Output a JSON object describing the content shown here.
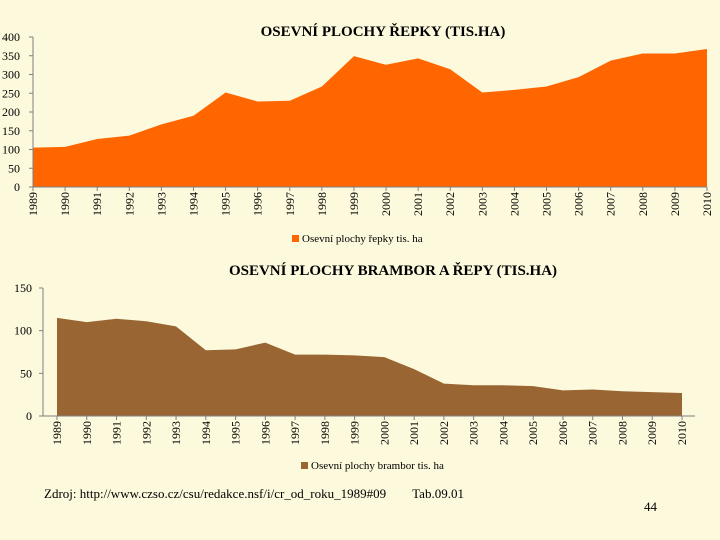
{
  "chart_data": [
    {
      "type": "area",
      "title": "OSEVNÍ PLOCHY ŘEPKY (TIS.HA)",
      "categories": [
        "1989",
        "1990",
        "1991",
        "1992",
        "1993",
        "1994",
        "1995",
        "1996",
        "1997",
        "1998",
        "1999",
        "2000",
        "2001",
        "2002",
        "2003",
        "2004",
        "2005",
        "2006",
        "2007",
        "2008",
        "2009",
        "2010"
      ],
      "series": [
        {
          "name": "Osevní plochy řepky  tis. ha",
          "values": [
            105,
            107,
            128,
            137,
            167,
            190,
            252,
            228,
            230,
            268,
            349,
            326,
            343,
            314,
            252,
            259,
            268,
            293,
            337,
            356,
            356,
            368
          ]
        }
      ],
      "ylim": [
        0,
        400
      ],
      "yticks": [
        0,
        50,
        100,
        150,
        200,
        250,
        300,
        350,
        400
      ],
      "color": "#ff6600",
      "legend": "bottom",
      "grid": false
    },
    {
      "type": "area",
      "title": "OSEVNÍ PLOCHY BRAMBOR A ŘEPY (TIS.HA)",
      "categories": [
        "1989",
        "1990",
        "1991",
        "1992",
        "1993",
        "1994",
        "1995",
        "1996",
        "1997",
        "1998",
        "1999",
        "2000",
        "2001",
        "2002",
        "2003",
        "2004",
        "2005",
        "2006",
        "2007",
        "2008",
        "2009",
        "2010"
      ],
      "series": [
        {
          "name": "Osevní plochy brambor tis. ha",
          "values": [
            115,
            110,
            114,
            111,
            105,
            77,
            78,
            86,
            72,
            72,
            71,
            69,
            55,
            38,
            36,
            36,
            35,
            30,
            31,
            29,
            28,
            27
          ]
        }
      ],
      "ylim": [
        0,
        150
      ],
      "yticks": [
        0,
        50,
        100,
        150
      ],
      "color": "#996633",
      "legend": "bottom",
      "grid": false
    }
  ],
  "footer": {
    "source": "Zdroj: http://www.czso.cz/csu/redakce.nsf/i/cr_od_roku_1989#09",
    "table": "Tab.09.01"
  },
  "page_number": "44"
}
